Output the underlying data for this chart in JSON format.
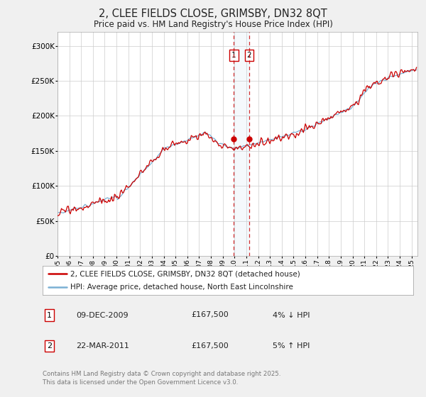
{
  "title": "2, CLEE FIELDS CLOSE, GRIMSBY, DN32 8QT",
  "subtitle": "Price paid vs. HM Land Registry's House Price Index (HPI)",
  "xlim_start": 1995.0,
  "xlim_end": 2025.5,
  "ylim": [
    0,
    320000
  ],
  "yticks": [
    0,
    50000,
    100000,
    150000,
    200000,
    250000,
    300000
  ],
  "ytick_labels": [
    "£0",
    "£50K",
    "£100K",
    "£150K",
    "£200K",
    "£250K",
    "£300K"
  ],
  "hpi_color": "#7ab0d4",
  "price_color": "#cc0000",
  "transaction1_x": 2009.94,
  "transaction1_y": 167500,
  "transaction1_label": "1",
  "transaction2_x": 2011.23,
  "transaction2_y": 167500,
  "transaction2_label": "2",
  "legend_line1": "2, CLEE FIELDS CLOSE, GRIMSBY, DN32 8QT (detached house)",
  "legend_line2": "HPI: Average price, detached house, North East Lincolnshire",
  "note1_label": "1",
  "note1_date": "09-DEC-2009",
  "note1_price": "£167,500",
  "note1_hpi": "4% ↓ HPI",
  "note2_label": "2",
  "note2_date": "22-MAR-2011",
  "note2_price": "£167,500",
  "note2_hpi": "5% ↑ HPI",
  "footer": "Contains HM Land Registry data © Crown copyright and database right 2025.\nThis data is licensed under the Open Government Licence v3.0.",
  "bg_color": "#f0f0f0",
  "plot_bg_color": "#ffffff",
  "grid_color": "#cccccc"
}
